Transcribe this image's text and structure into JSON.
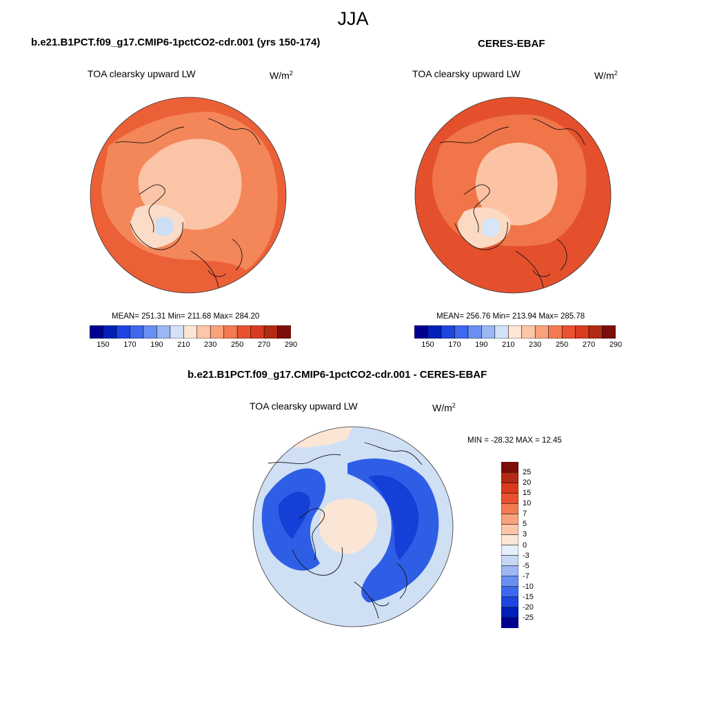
{
  "figure": {
    "title": "JJA"
  },
  "panels": [
    {
      "id": "model",
      "title": "b.e21.B1PCT.f09_g17.CMIP6-1pctCO2-cdr.001 (yrs 150-174)",
      "variable": "TOA clearsky upward LW",
      "units_base": "W/m",
      "units_exp": "2",
      "stats": "MEAN= 251.31  Min= 211.68  Max= 284.20",
      "mean": 251.31,
      "min": 211.68,
      "max": 284.2
    },
    {
      "id": "obs",
      "title": "CERES-EBAF",
      "variable": "TOA clearsky upward LW",
      "units_base": "W/m",
      "units_exp": "2",
      "stats": "MEAN= 256.76  Min= 213.94  Max= 285.78",
      "mean": 256.76,
      "min": 213.94,
      "max": 285.78
    },
    {
      "id": "diff",
      "title": "b.e21.B1PCT.f09_g17.CMIP6-1pctCO2-cdr.001 - CERES-EBAF",
      "variable": "TOA clearsky upward LW",
      "units_base": "W/m",
      "units_exp": "2",
      "stats": "MIN = -28.32 MAX =  12.45",
      "min": -28.32,
      "max": 12.45
    }
  ],
  "colorbar_main": {
    "tick_labels": [
      "150",
      "170",
      "190",
      "210",
      "230",
      "250",
      "270",
      "290"
    ],
    "colors": [
      "#00008f",
      "#0020b8",
      "#1f45e0",
      "#3e68ee",
      "#6a8ff2",
      "#9cb7f4",
      "#d3e2f7",
      "#fde6d6",
      "#fcc6a8",
      "#f9a27c",
      "#f47a52",
      "#ea5131",
      "#d93b1e",
      "#b32a13",
      "#7d0d0a"
    ]
  },
  "colorbar_diff": {
    "tick_labels": [
      "25",
      "20",
      "15",
      "10",
      "7",
      "5",
      "3",
      "0",
      "-3",
      "-5",
      "-7",
      "-10",
      "-15",
      "-20",
      "-25"
    ],
    "colors": [
      "#7d0d0a",
      "#b32a13",
      "#d93b1e",
      "#ea5131",
      "#f47a52",
      "#f9a27c",
      "#fcc6a8",
      "#fde6d6",
      "#e5eefa",
      "#c6d8f4",
      "#9cb7f4",
      "#6a8ff2",
      "#3e68ee",
      "#1f45e0",
      "#0020b8",
      "#00008f"
    ]
  },
  "map_colors": {
    "model_outer": "#ec6038",
    "model_mid": "#f4875a",
    "model_inner": "#fcc4a6",
    "model_ice": "#fbdcc8",
    "model_greenland": "#cddff5",
    "obs_outer": "#e4502c",
    "obs_mid": "#f07548",
    "obs_inner": "#fbc3a4",
    "obs_ice": "#fbd9c2",
    "obs_greenland": "#d7e5f6",
    "diff_bg": "#cfe0f5",
    "diff_ring": "#2f5ee6",
    "diff_deep": "#163fd8",
    "diff_center": "#fbe6d6",
    "coast": "#111111"
  }
}
